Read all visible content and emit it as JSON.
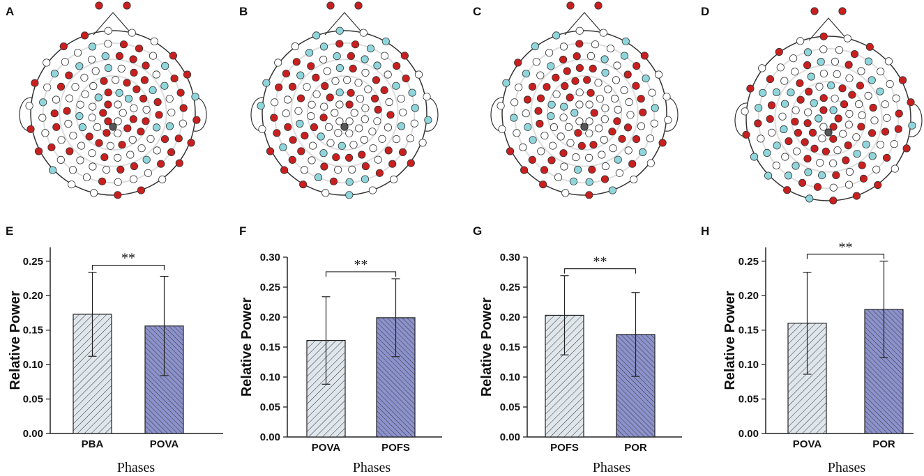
{
  "panel_labels": [
    "A",
    "B",
    "C",
    "D",
    "E",
    "F",
    "G",
    "H"
  ],
  "colors": {
    "red": "#c91f1f",
    "cyan": "#8fd6dc",
    "open": "#ffffff",
    "ref": "#555555",
    "bar_light": "#dfe6ec",
    "bar_dark": "#8c92cc",
    "hatch": "#333333"
  },
  "chart_data": [
    {
      "type": "bar",
      "panel": "E",
      "categories": [
        "PBA",
        "POVA"
      ],
      "values": [
        0.173,
        0.156
      ],
      "errors": [
        0.061,
        0.072
      ],
      "ylim": [
        0,
        0.27
      ],
      "yticks": [
        "0.00",
        "0.05",
        "0.10",
        "0.15",
        "0.20",
        "0.25"
      ],
      "xlabel": "Phases",
      "ylabel": "Relative Power",
      "significance": "**"
    },
    {
      "type": "bar",
      "panel": "F",
      "categories": [
        "POVA",
        "POFS"
      ],
      "values": [
        0.161,
        0.199
      ],
      "errors": [
        0.073,
        0.065
      ],
      "ylim": [
        0,
        0.3
      ],
      "yticks": [
        "0.00",
        "0.05",
        "0.10",
        "0.15",
        "0.20",
        "0.25",
        "0.30"
      ],
      "xlabel": "Phases",
      "ylabel": "Relative Power",
      "significance": "**"
    },
    {
      "type": "bar",
      "panel": "G",
      "categories": [
        "POFS",
        "POR"
      ],
      "values": [
        0.203,
        0.171
      ],
      "errors": [
        0.066,
        0.07
      ],
      "ylim": [
        0,
        0.3
      ],
      "yticks": [
        "0.00",
        "0.05",
        "0.10",
        "0.15",
        "0.20",
        "0.25",
        "0.30"
      ],
      "xlabel": "Phases",
      "ylabel": "Relative Power",
      "significance": "**"
    },
    {
      "type": "bar",
      "panel": "H",
      "categories": [
        "POVA",
        "POR"
      ],
      "values": [
        0.16,
        0.18
      ],
      "errors": [
        0.074,
        0.07
      ],
      "ylim": [
        0,
        0.27
      ],
      "yticks": [
        "0.00",
        "0.05",
        "0.10",
        "0.15",
        "0.20",
        "0.25"
      ],
      "xlabel": "Phases",
      "ylabel": "Relative Power",
      "significance": "**"
    }
  ]
}
